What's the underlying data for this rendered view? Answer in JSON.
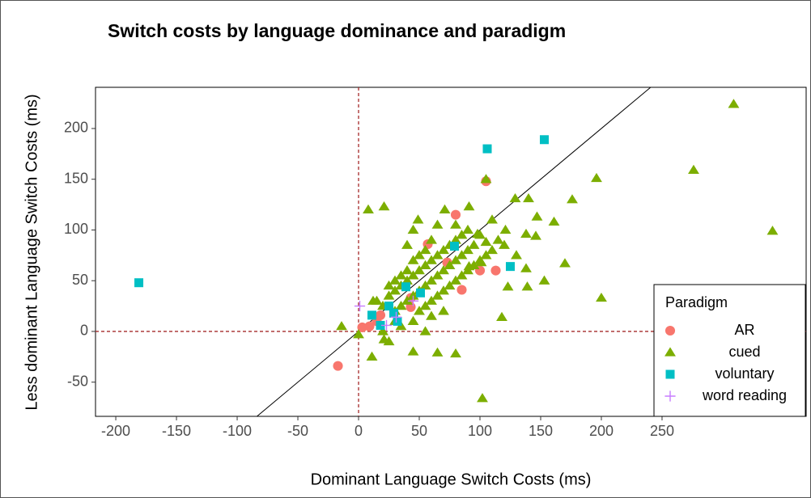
{
  "chart_data": {
    "type": "scatter",
    "title": "Switch costs by language dominance and paradigm",
    "x_label": "Dominant Language Switch Costs (ms)",
    "y_label": "Less dominant Language Switch Costs (ms)",
    "legend_title": "Paradigm",
    "legend_position": "bottom-right",
    "xlim": [
      -216.7,
      368.7
    ],
    "ylim": [
      -83.7,
      240.6
    ],
    "xticks": [
      -200,
      -150,
      -100,
      -50,
      0,
      50,
      100,
      150,
      200,
      250
    ],
    "yticks": [
      -50,
      0,
      50,
      100,
      150,
      200
    ],
    "reference_lines": {
      "x": 0,
      "y": 0,
      "color": "#a52a2a"
    },
    "identity_line": true,
    "grid": false,
    "series": [
      {
        "name": "AR",
        "color": "#F8766D",
        "marker": "circle",
        "x": [
          -17,
          3,
          9,
          15,
          57,
          80,
          105,
          100,
          113,
          85,
          73,
          43,
          43,
          18
        ],
        "values": [
          -34,
          4,
          5,
          10,
          86,
          115,
          148,
          60,
          60,
          41,
          68,
          24,
          33,
          16
        ]
      },
      {
        "name": "cued",
        "color": "#7CAE00",
        "marker": "triangle",
        "x": [
          -14,
          0,
          8,
          21,
          12,
          11,
          21,
          25,
          45,
          65,
          80,
          102,
          105,
          129,
          140,
          176,
          196,
          276,
          309,
          341,
          200,
          170,
          153,
          139,
          138,
          118,
          123,
          49,
          71,
          91,
          121,
          147,
          161,
          138,
          146,
          101,
          91,
          98,
          105,
          15,
          20,
          25,
          30,
          35,
          40,
          45,
          50,
          55,
          60,
          65,
          70,
          75,
          80,
          85,
          90,
          30,
          35,
          40,
          45,
          50,
          55,
          60,
          65,
          70,
          75,
          80,
          85,
          90,
          95,
          40,
          45,
          50,
          55,
          60,
          35,
          30,
          25,
          50,
          55,
          60,
          65,
          70,
          75,
          80,
          85,
          90,
          95,
          100,
          105,
          110,
          45,
          60,
          70,
          55,
          35,
          20,
          30,
          65,
          45,
          40,
          80,
          110,
          100,
          115,
          120,
          130
        ],
        "values": [
          5,
          -3,
          120,
          123,
          30,
          -25,
          -8,
          -10,
          -20,
          -21,
          -22,
          -66,
          150,
          131,
          131,
          130,
          151,
          159,
          224,
          99,
          33,
          67,
          50,
          44,
          62,
          14,
          44,
          110,
          120,
          123,
          100,
          113,
          108,
          96,
          94,
          68,
          64,
          96,
          88,
          30,
          25,
          35,
          40,
          45,
          50,
          55,
          60,
          65,
          70,
          75,
          80,
          85,
          90,
          95,
          100,
          20,
          25,
          30,
          35,
          40,
          45,
          50,
          55,
          60,
          65,
          70,
          75,
          80,
          85,
          60,
          70,
          75,
          80,
          90,
          55,
          50,
          45,
          20,
          25,
          30,
          35,
          40,
          45,
          50,
          55,
          60,
          65,
          70,
          75,
          80,
          10,
          15,
          20,
          0,
          5,
          0,
          10,
          105,
          100,
          85,
          105,
          110,
          95,
          90,
          85,
          75
        ]
      },
      {
        "name": "voluntary",
        "color": "#00BFC4",
        "marker": "square",
        "x": [
          -181,
          106,
          153,
          79,
          125,
          39,
          51,
          11,
          25,
          18,
          32,
          29
        ],
        "values": [
          48,
          180,
          189,
          84,
          64,
          44,
          38,
          16,
          25,
          6,
          10,
          18
        ]
      },
      {
        "name": "word reading",
        "color": "#C77CFF",
        "marker": "plus",
        "x": [
          1,
          23,
          31,
          45
        ],
        "values": [
          25,
          6,
          14,
          30
        ]
      }
    ]
  }
}
